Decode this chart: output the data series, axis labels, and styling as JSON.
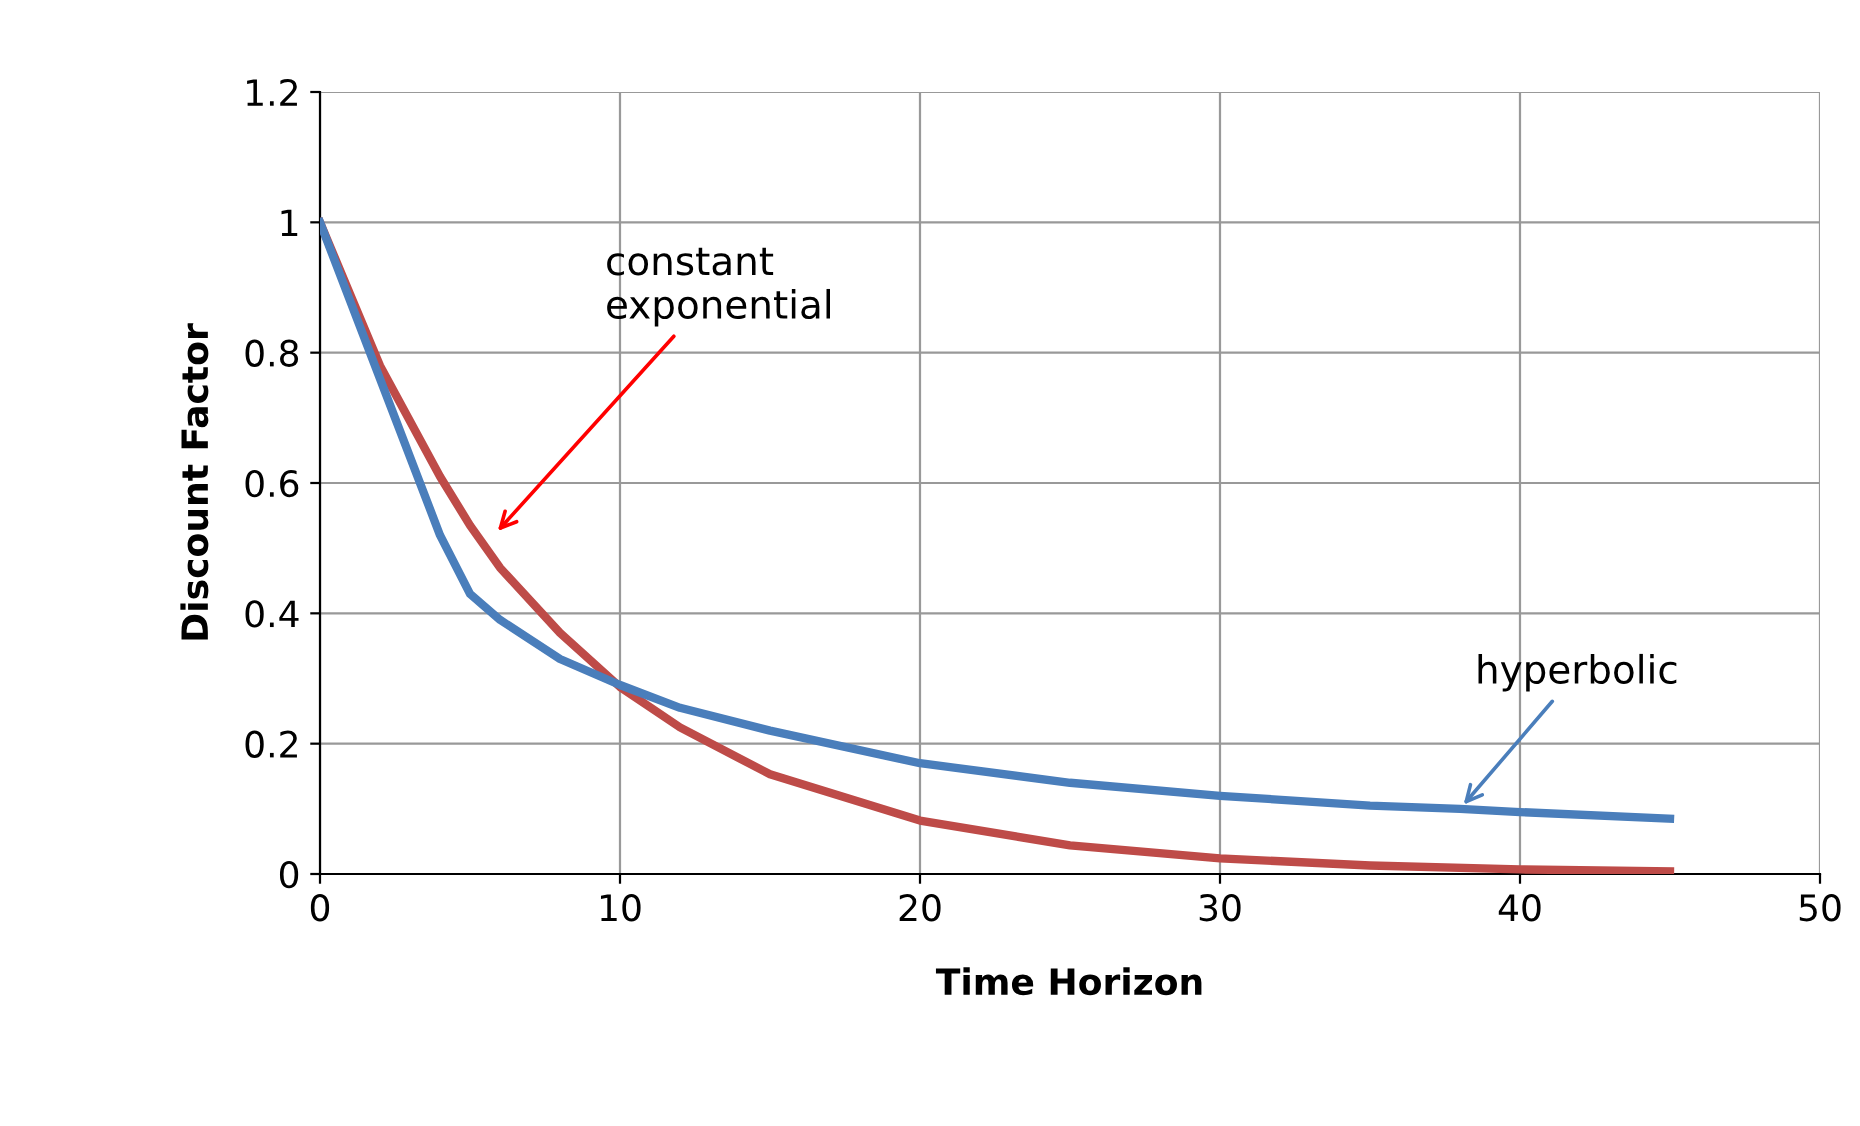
{
  "chart_data": {
    "type": "line",
    "xlabel": "Time Horizon",
    "ylabel": "Discount Factor",
    "xlim": [
      0,
      50
    ],
    "xticks": [
      0,
      10,
      20,
      30,
      40,
      50
    ],
    "ylim": [
      0,
      1.2
    ],
    "yticks": [
      {
        "value": 0,
        "label": "0"
      },
      {
        "value": 0.2,
        "label": "0.2"
      },
      {
        "value": 0.4,
        "label": "0.4"
      },
      {
        "value": 0.6,
        "label": "0.6"
      },
      {
        "value": 0.8,
        "label": "0.8"
      },
      {
        "value": 1,
        "label": "1"
      },
      {
        "value": 1.2,
        "label": "1.2"
      }
    ],
    "grid": true,
    "marker": "none",
    "line_style": "solid",
    "series": [
      {
        "color": "#be4b48",
        "x": [
          0,
          2,
          4,
          5,
          6,
          8,
          10,
          12,
          15,
          20,
          25,
          30,
          35,
          40,
          45
        ],
        "values": [
          1,
          0.78,
          0.61,
          0.535,
          0.47,
          0.37,
          0.287,
          0.225,
          0.153,
          0.082,
          0.044,
          0.024,
          0.013,
          0.007,
          0.004
        ]
      },
      {
        "color": "#4a7ebb",
        "x": [
          0,
          2,
          4,
          5,
          6,
          8,
          10,
          12,
          15,
          20,
          25,
          30,
          35,
          38,
          40,
          45
        ],
        "values": [
          1,
          0.76,
          0.52,
          0.43,
          0.39,
          0.33,
          0.29,
          0.255,
          0.22,
          0.17,
          0.14,
          0.12,
          0.105,
          0.1,
          0.095,
          0.085
        ]
      }
    ],
    "annotations": [
      {
        "text": "constant\nexponential",
        "x": 5.8,
        "y": 0.52
      },
      {
        "text": "hyperbolic",
        "x": 38,
        "y": 0.1
      }
    ]
  }
}
